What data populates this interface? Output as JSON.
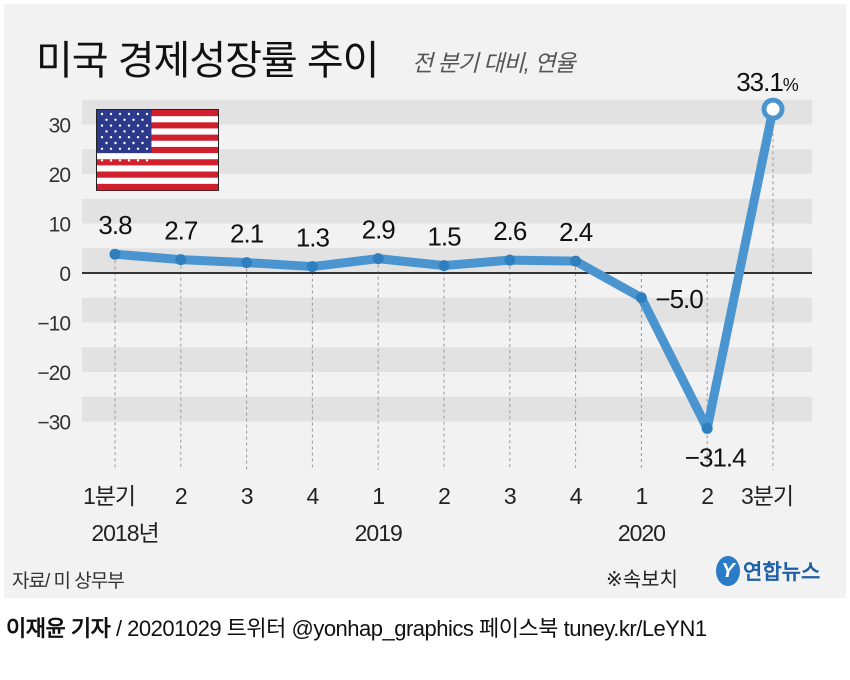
{
  "title": "미국 경제성장률 추이",
  "subtitle": "전 분기 대비, 연율",
  "chart_data": {
    "type": "line",
    "title": "미국 경제성장률 추이",
    "subtitle": "전 분기 대비, 연율",
    "categories": [
      "1분기",
      "2",
      "3",
      "4",
      "1",
      "2",
      "3",
      "4",
      "1",
      "2",
      "3분기"
    ],
    "year_labels": [
      {
        "label": "2018년",
        "index": 0
      },
      {
        "label": "2019",
        "index": 4
      },
      {
        "label": "2020",
        "index": 8
      }
    ],
    "values": [
      3.8,
      2.7,
      2.1,
      1.3,
      2.9,
      1.5,
      2.6,
      2.4,
      -5.0,
      -31.4,
      33.1
    ],
    "data_labels": [
      "3.8",
      "2.7",
      "2.1",
      "1.3",
      "2.9",
      "1.5",
      "2.6",
      "2.4",
      "−5.0",
      "−31.4",
      "33.1"
    ],
    "last_label_unit": "%",
    "yticks": [
      30,
      20,
      10,
      0,
      -10,
      -20,
      -30
    ],
    "ytick_labels": [
      "30",
      "20",
      "10",
      "0",
      "−10",
      "−20",
      "−30"
    ],
    "ylim": [
      -35,
      35
    ],
    "grid": "alternating horizontal bands",
    "line_color": "#4a95d0",
    "highlight": "last point hollow marker"
  },
  "flag": "us-flag",
  "source": "자료/ 미 상무부",
  "note": "※속보치",
  "logo": {
    "mark": "Y",
    "text": "연합뉴스"
  },
  "footer": {
    "author": "이재윤 기자",
    "rest": " / 20201029   트위터 @yonhap_graphics  페이스북 tuney.kr/LeYN1"
  }
}
